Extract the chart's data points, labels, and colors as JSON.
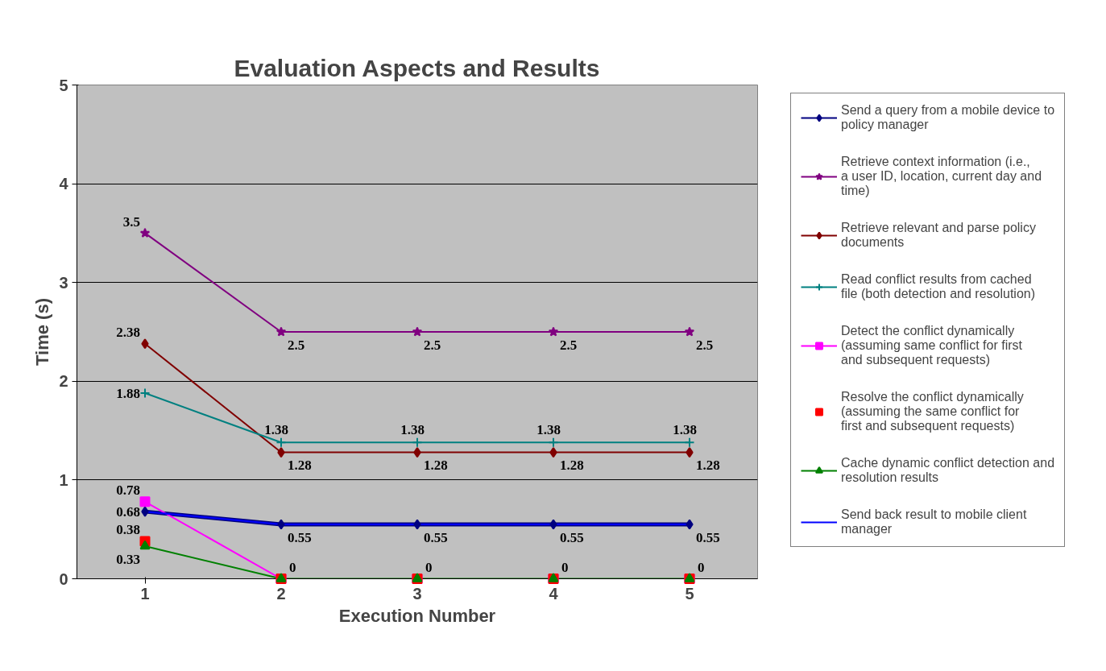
{
  "chart_data": {
    "type": "line",
    "title": "Evaluation Aspects and Results",
    "xlabel": "Execution Number",
    "ylabel": "Time (s)",
    "categories": [
      "1",
      "2",
      "3",
      "4",
      "5"
    ],
    "ylim": [
      0,
      5
    ],
    "yticks": [
      0,
      1,
      2,
      3,
      4,
      5
    ],
    "grid": "y",
    "legend": "right",
    "series": [
      {
        "name": "Send a query from a mobile device to policy manager",
        "color": "#000080",
        "marker": "diamond",
        "values": [
          0.68,
          0.55,
          0.55,
          0.55,
          0.55
        ],
        "value_labels": [
          "0.68",
          "0.55",
          "0.55",
          "0.55",
          "0.55"
        ]
      },
      {
        "name": "Retrieve context information (i.e., a user ID, location, current day and time)",
        "color": "#800080",
        "marker": "star",
        "values": [
          3.5,
          2.5,
          2.5,
          2.5,
          2.5
        ],
        "value_labels": [
          "3.5",
          "2.5",
          "2.5",
          "2.5",
          "2.5"
        ]
      },
      {
        "name": "Retrieve relevant and parse policy documents",
        "color": "#800000",
        "marker": "diamond",
        "values": [
          2.38,
          1.28,
          1.28,
          1.28,
          1.28
        ],
        "value_labels": [
          "2.38",
          "1.28",
          "1.28",
          "1.28",
          "1.28"
        ]
      },
      {
        "name": "Read conflict results from cached file (both detection and resolution)",
        "color": "#008080",
        "marker": "cross",
        "values": [
          1.88,
          1.38,
          1.38,
          1.38,
          1.38
        ],
        "value_labels": [
          "1.88",
          "1.38",
          "1.38",
          "1.38",
          "1.38"
        ]
      },
      {
        "name": "Detect the conflict dynamically (assuming same conflict for first and subsequent requests)",
        "color": "#ff00ff",
        "marker": "square",
        "values": [
          0.78,
          0,
          null,
          null,
          null
        ],
        "value_labels": [
          "0.78",
          null,
          null,
          null,
          null
        ]
      },
      {
        "name": "Resolve the conflict dynamically (assuming the same conflict for first and subsequent requests)",
        "type": "scatter",
        "color": "#ff0000",
        "marker": "square",
        "values": [
          0.38,
          0,
          0,
          0,
          0
        ],
        "value_labels": [
          "0.38",
          null,
          null,
          null,
          null
        ]
      },
      {
        "name": "Cache dynamic conflict detection and resolution results",
        "color": "#008000",
        "marker": "triangle",
        "values": [
          0.33,
          0,
          0,
          0,
          0
        ],
        "value_labels": [
          "0.33",
          "0",
          "0",
          "0",
          "0"
        ]
      },
      {
        "name": "Send back result to mobile client manager",
        "color": "#0000ff",
        "marker": "none",
        "values": [
          0.68,
          0.55,
          0.55,
          0.55,
          0.55
        ],
        "value_labels": [
          null,
          null,
          null,
          null,
          null
        ]
      }
    ]
  }
}
